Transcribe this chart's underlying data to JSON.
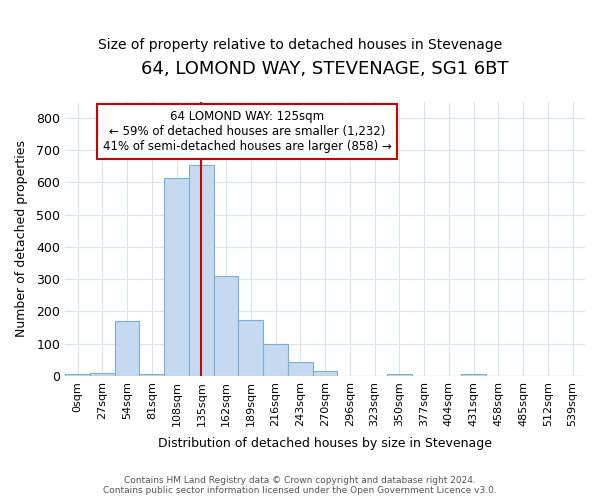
{
  "title": "64, LOMOND WAY, STEVENAGE, SG1 6BT",
  "subtitle": "Size of property relative to detached houses in Stevenage",
  "xlabel": "Distribution of detached houses by size in Stevenage",
  "ylabel": "Number of detached properties",
  "bin_labels": [
    "0sqm",
    "27sqm",
    "54sqm",
    "81sqm",
    "108sqm",
    "135sqm",
    "162sqm",
    "189sqm",
    "216sqm",
    "243sqm",
    "270sqm",
    "296sqm",
    "323sqm",
    "350sqm",
    "377sqm",
    "404sqm",
    "431sqm",
    "458sqm",
    "485sqm",
    "512sqm",
    "539sqm"
  ],
  "bar_values": [
    5,
    10,
    170,
    5,
    615,
    655,
    310,
    175,
    100,
    42,
    15,
    0,
    0,
    5,
    0,
    0,
    5,
    0,
    0,
    0,
    0
  ],
  "bar_color": "#c5d9f0",
  "bar_edge_color": "#7bafd4",
  "vline_color": "#cc0000",
  "vline_x": 5.0,
  "annotation_text": "64 LOMOND WAY: 125sqm\n← 59% of detached houses are smaller (1,232)\n41% of semi-detached houses are larger (858) →",
  "annotation_box_color": "white",
  "annotation_box_edge_color": "#cc0000",
  "footer_text": "Contains HM Land Registry data © Crown copyright and database right 2024.\nContains public sector information licensed under the Open Government Licence v3.0.",
  "ylim": [
    0,
    850
  ],
  "yticks": [
    0,
    100,
    200,
    300,
    400,
    500,
    600,
    700,
    800
  ],
  "grid_color": "#d8e4f0",
  "background_color": "#ffffff",
  "title_fontsize": 13,
  "subtitle_fontsize": 10
}
